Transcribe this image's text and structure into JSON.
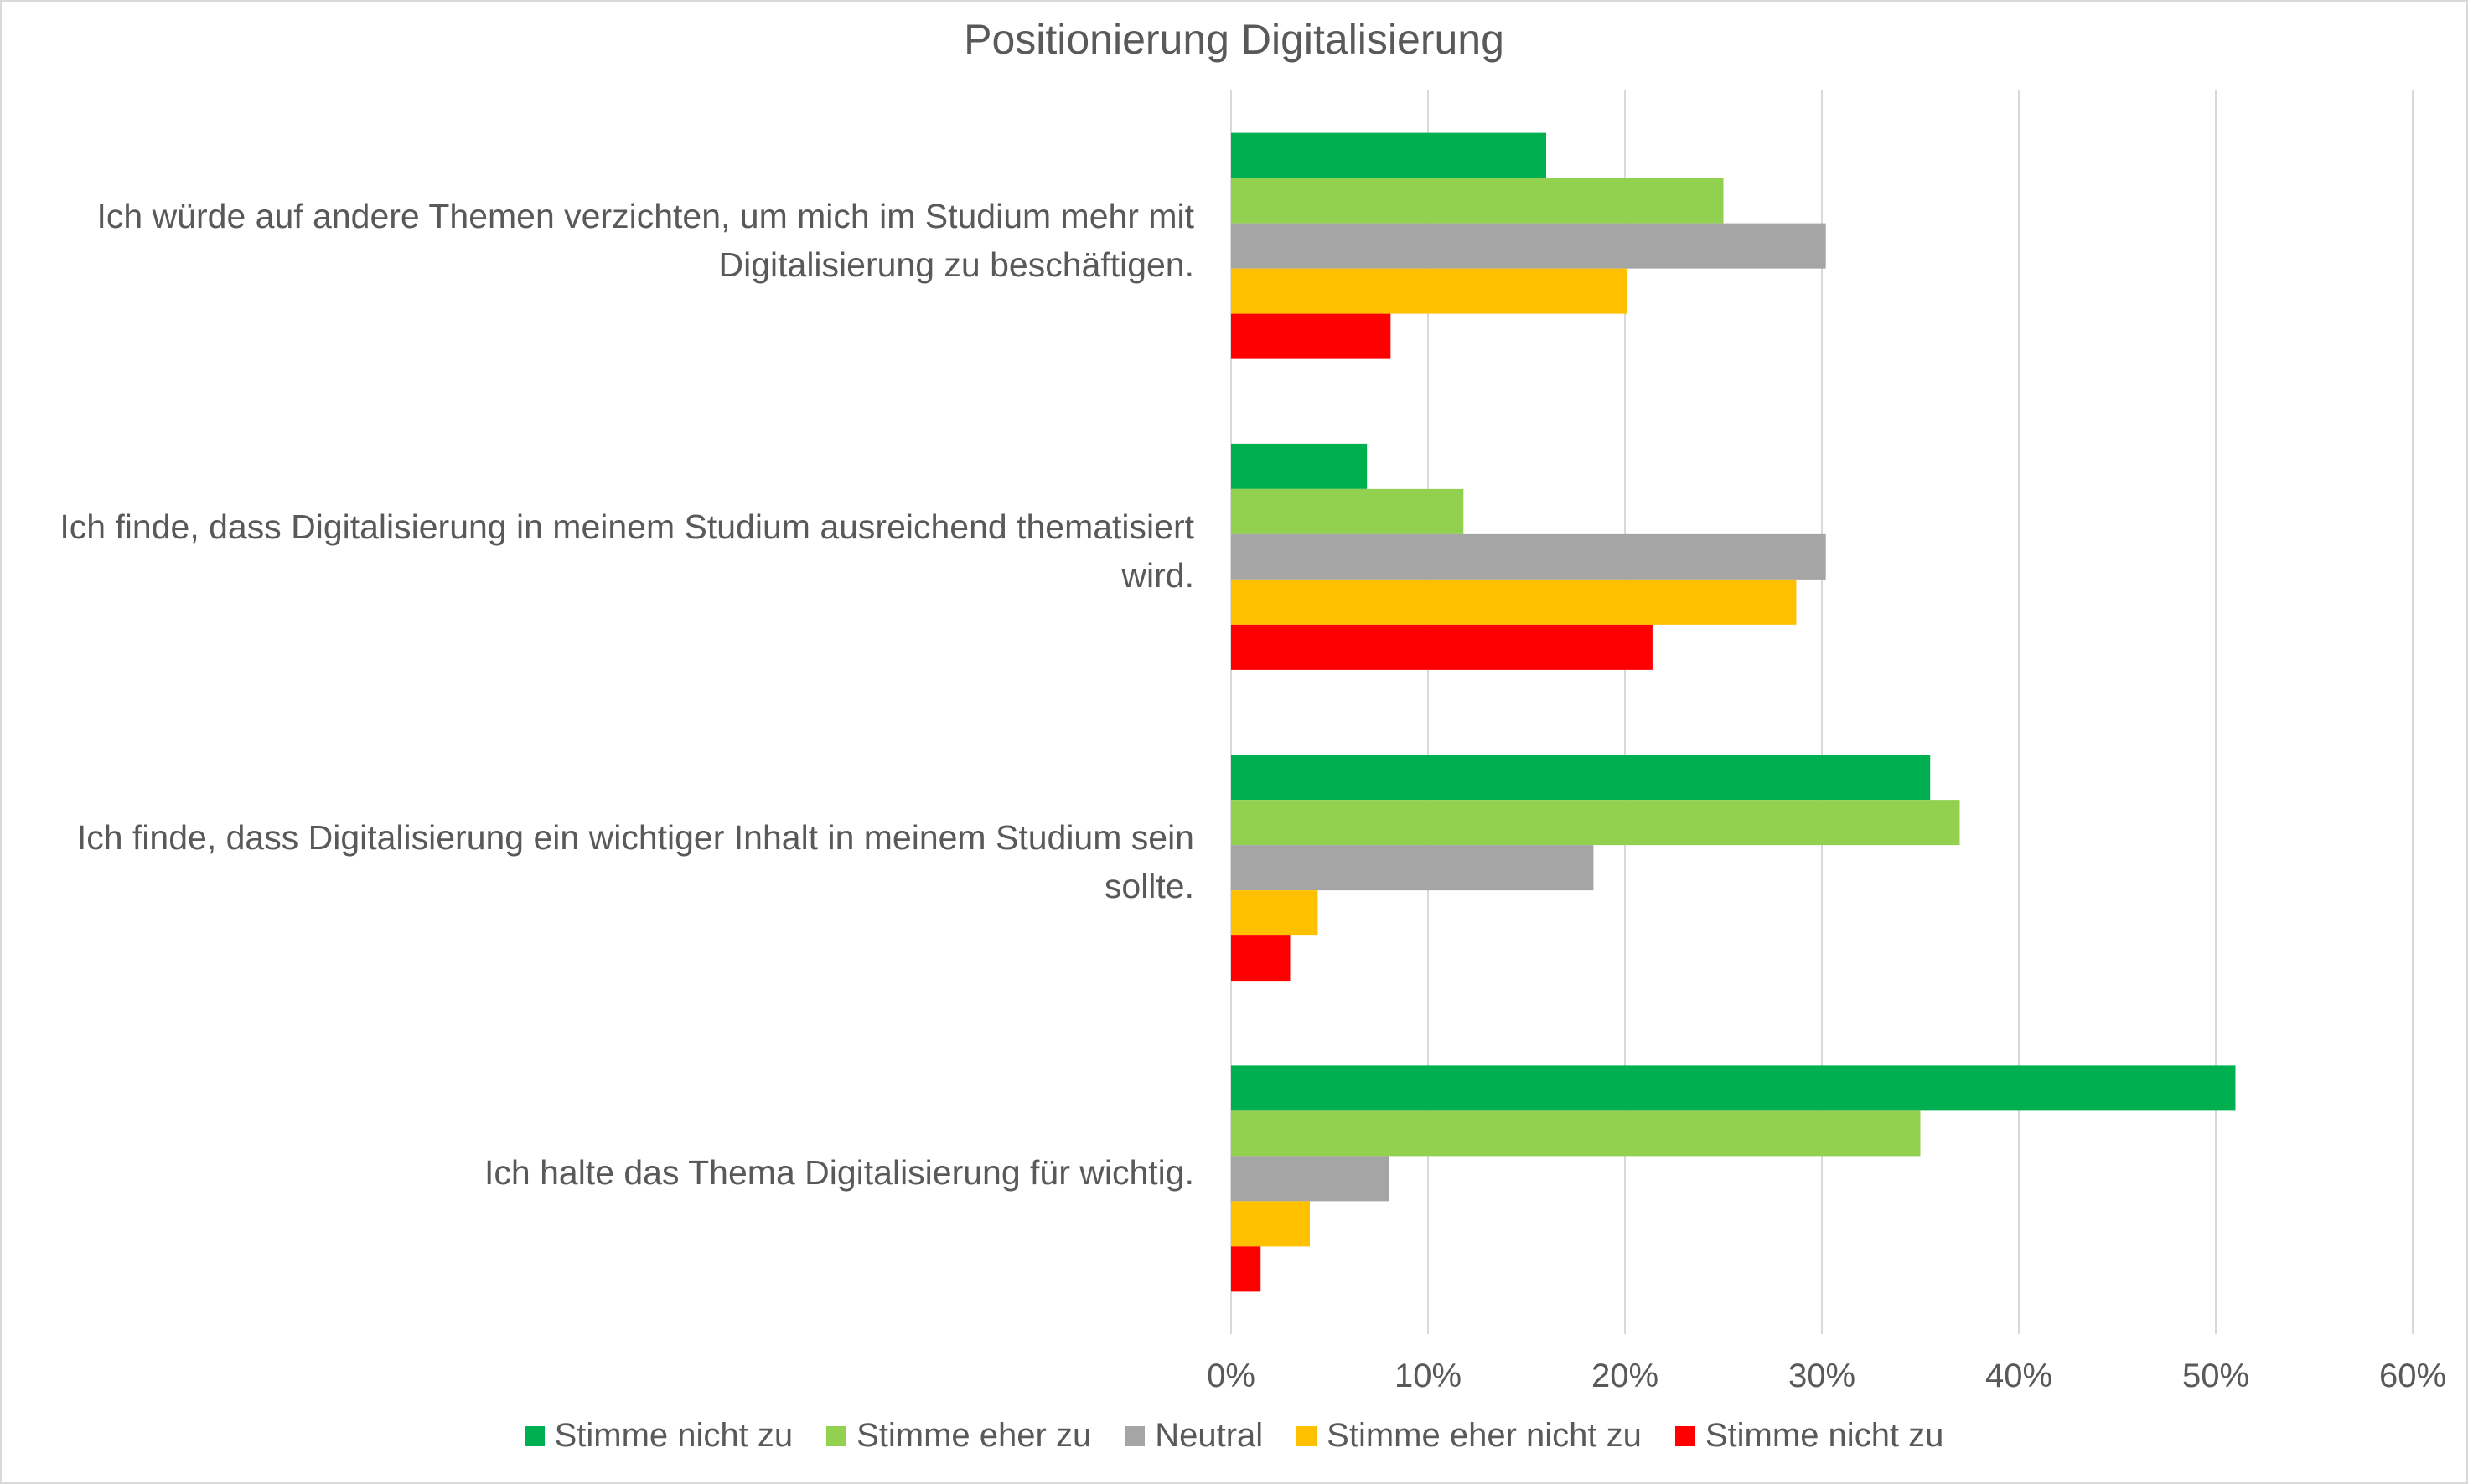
{
  "chart_data": {
    "type": "bar",
    "orientation": "horizontal",
    "title": "Positionierung Digitalisierung",
    "xlabel": "",
    "ylabel": "",
    "xlim": [
      0,
      60
    ],
    "x_ticks": [
      "0%",
      "10%",
      "20%",
      "30%",
      "40%",
      "50%",
      "60%"
    ],
    "grid": true,
    "legend_position": "bottom",
    "categories": [
      "Ich würde auf andere Themen verzichten, um mich im Studium mehr mit Digitalisierung zu beschäftigen.",
      "Ich finde, dass Digitalisierung in meinem Studium ausreichend thematisiert wird.",
      "Ich finde, dass Digitalisierung ein wichtiger Inhalt in meinem Studium sein sollte.",
      "Ich halte das Thema Digitalisierung für wichtig."
    ],
    "series": [
      {
        "name": "Stimme nicht zu",
        "color": "#00b050",
        "values": [
          16,
          6.9,
          35.5,
          51
        ]
      },
      {
        "name": "Stimme eher zu",
        "color": "#92d050",
        "values": [
          25,
          11.8,
          37,
          35
        ]
      },
      {
        "name": "Neutral",
        "color": "#a5a5a5",
        "values": [
          30.2,
          30.2,
          18.4,
          8
        ]
      },
      {
        "name": "Stimme eher nicht zu",
        "color": "#ffc000",
        "values": [
          20.1,
          28.7,
          4.4,
          4
        ]
      },
      {
        "name": "Stimme nicht zu",
        "color": "#ff0000",
        "values": [
          8.1,
          21.4,
          3,
          1.5
        ]
      }
    ]
  }
}
